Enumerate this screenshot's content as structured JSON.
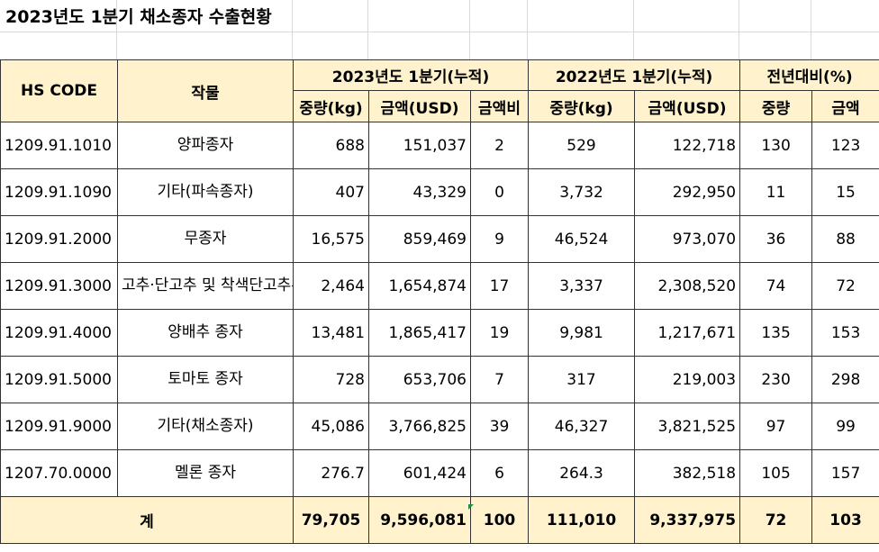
{
  "title": "2023년도 1분기 채소종자 수출현황",
  "header": {
    "hs_code": "HS CODE",
    "crop": "작물",
    "group_2023": "2023년도 1분기(누적)",
    "group_2022": "2022년도 1분기(누적)",
    "group_yoy": "전년대비(%)",
    "weight": "중량(kg)",
    "amount": "금액(USD)",
    "share": "금액비",
    "yoy_weight": "중량",
    "yoy_amount": "금액"
  },
  "rows": [
    {
      "hs": "1209.91.1010",
      "crop": "양파종자",
      "w23": "688",
      "a23": "151,037",
      "share": "2",
      "w22": "529",
      "a22": "122,718",
      "yw": "130",
      "ya": "123"
    },
    {
      "hs": "1209.91.1090",
      "crop": "기타(파속종자)",
      "w23": "407",
      "a23": "43,329",
      "share": "0",
      "w22": "3,732",
      "a22": "292,950",
      "yw": "11",
      "ya": "15"
    },
    {
      "hs": "1209.91.2000",
      "crop": "무종자",
      "w23": "16,575",
      "a23": "859,469",
      "share": "9",
      "w22": "46,524",
      "a22": "973,070",
      "yw": "36",
      "ya": "88"
    },
    {
      "hs": "1209.91.3000",
      "crop": "고추·단고추 및 착색단고추류의 종자",
      "w23": "2,464",
      "a23": "1,654,874",
      "share": "17",
      "w22": "3,337",
      "a22": "2,308,520",
      "yw": "74",
      "ya": "72"
    },
    {
      "hs": "1209.91.4000",
      "crop": "양배추 종자",
      "w23": "13,481",
      "a23": "1,865,417",
      "share": "19",
      "w22": "9,981",
      "a22": "1,217,671",
      "yw": "135",
      "ya": "153"
    },
    {
      "hs": "1209.91.5000",
      "crop": "토마토 종자",
      "w23": "728",
      "a23": "653,706",
      "share": "7",
      "w22": "317",
      "a22": "219,003",
      "yw": "230",
      "ya": "298"
    },
    {
      "hs": "1209.91.9000",
      "crop": "기타(채소종자)",
      "w23": "45,086",
      "a23": "3,766,825",
      "share": "39",
      "w22": "46,327",
      "a22": "3,821,525",
      "yw": "97",
      "ya": "99"
    },
    {
      "hs": "1207.70.0000",
      "crop": "멜론 종자",
      "w23": "276.7",
      "a23": "601,424",
      "share": "6",
      "w22": "264.3",
      "a22": "382,518",
      "yw": "105",
      "ya": "157"
    }
  ],
  "total": {
    "label": "계",
    "w23": "79,705",
    "a23": "9,596,081",
    "share": "100",
    "w22": "111,010",
    "a22": "9,337,975",
    "yw": "72",
    "ya": "103"
  }
}
